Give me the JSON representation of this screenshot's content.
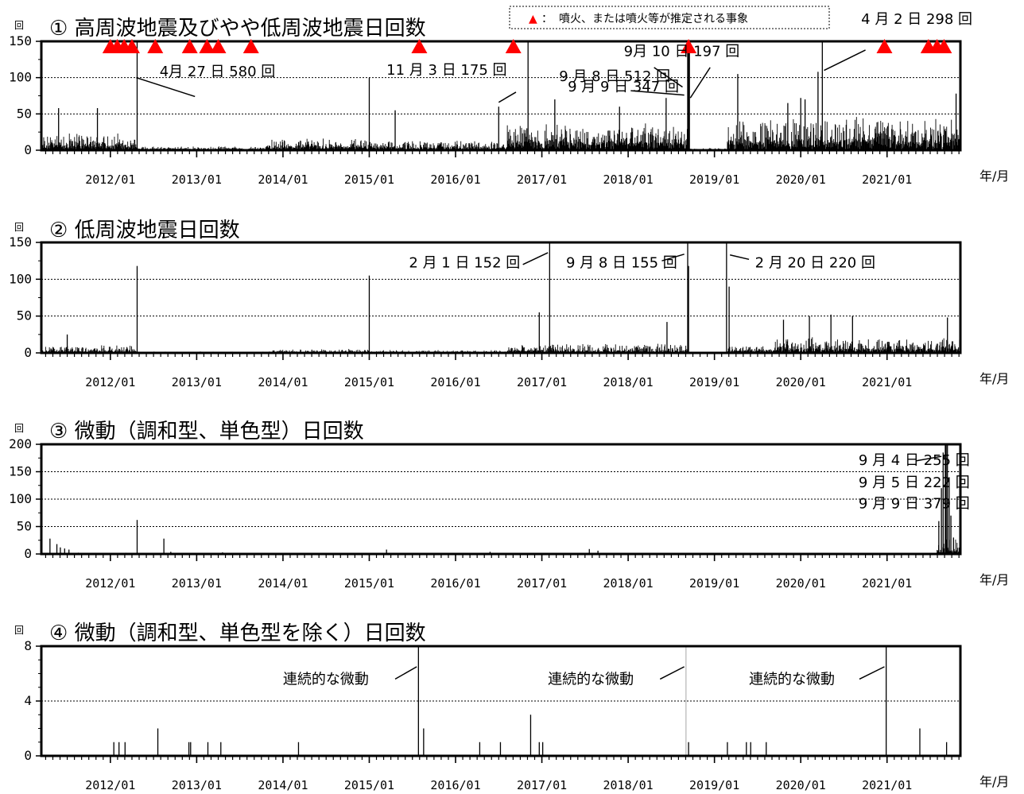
{
  "legend": {
    "symbol": "▲",
    "colon": "：",
    "text": "噴火、または噴火等が推定される事象",
    "color": "#ff0000"
  },
  "chart_data": [
    {
      "type": "bar",
      "title": "① 高周波地震及びやや低周波地震日回数",
      "ylabel": "回",
      "xunit": "年/月",
      "ylim": [
        0,
        150
      ],
      "yticks": [
        0,
        50,
        100,
        150
      ],
      "xlim": [
        2011.2,
        2021.85
      ],
      "xticks": [
        "2012/01",
        "2013/01",
        "2014/01",
        "2015/01",
        "2016/01",
        "2017/01",
        "2018/01",
        "2019/01",
        "2020/01",
        "2021/01"
      ],
      "grid": true,
      "spikes": [
        {
          "x": 2012.31,
          "y": 580
        },
        {
          "x": 2015.0,
          "y": 100
        },
        {
          "x": 2016.84,
          "y": 175
        },
        {
          "x": 2018.44,
          "y": 72
        },
        {
          "x": 2018.69,
          "y": 512
        },
        {
          "x": 2018.7,
          "y": 347
        },
        {
          "x": 2018.71,
          "y": 197
        },
        {
          "x": 2019.27,
          "y": 105
        },
        {
          "x": 2020.0,
          "y": 72
        },
        {
          "x": 2020.2,
          "y": 108
        },
        {
          "x": 2020.25,
          "y": 298
        },
        {
          "x": 2011.4,
          "y": 58
        },
        {
          "x": 2011.85,
          "y": 58
        },
        {
          "x": 2015.3,
          "y": 55
        },
        {
          "x": 2016.5,
          "y": 60
        },
        {
          "x": 2017.15,
          "y": 70
        },
        {
          "x": 2017.9,
          "y": 60
        },
        {
          "x": 2019.85,
          "y": 65
        },
        {
          "x": 2020.05,
          "y": 70
        },
        {
          "x": 2021.8,
          "y": 78
        }
      ],
      "levels": [
        {
          "from": 2011.2,
          "to": 2012.3,
          "base": 8,
          "var": 18
        },
        {
          "from": 2012.3,
          "to": 2013.8,
          "base": 2,
          "var": 4
        },
        {
          "from": 2013.8,
          "to": 2015.0,
          "base": 6,
          "var": 12
        },
        {
          "from": 2015.0,
          "to": 2016.6,
          "base": 4,
          "var": 10
        },
        {
          "from": 2016.6,
          "to": 2018.7,
          "base": 12,
          "var": 26
        },
        {
          "from": 2018.7,
          "to": 2019.15,
          "base": 1,
          "var": 2
        },
        {
          "from": 2019.15,
          "to": 2021.85,
          "base": 15,
          "var": 32
        }
      ],
      "eruptions": [
        2012.0,
        2012.08,
        2012.16,
        2012.25,
        2012.52,
        2012.92,
        2013.12,
        2013.25,
        2013.63,
        2015.58,
        2016.67,
        2018.7,
        2020.97,
        2021.48,
        2021.58,
        2021.66
      ],
      "annotations": [
        {
          "text": "4月 27 日 580 回",
          "tx": 2012.57,
          "ty": 102,
          "x1": 2012.3,
          "y1": 100,
          "x2": 2012.98,
          "y2": 74
        },
        {
          "text": "11 月 3 日 175 回",
          "tx": 2015.2,
          "ty": 104,
          "x1": 2016.5,
          "y1": 66,
          "x2": 2016.7,
          "y2": 80
        },
        {
          "text": "9 月 9 日 347 回",
          "tx": 2017.3,
          "ty": 81,
          "x1": 2018.3,
          "y1": 114,
          "x2": 2018.63,
          "y2": 87
        },
        {
          "text": "9月 10 日 197 回",
          "tx": 2017.95,
          "ty": 130,
          "x1": 2018.72,
          "y1": 72,
          "x2": 2018.95,
          "y2": 114
        },
        {
          "text": "9 月 8 日 512 回",
          "tx": 2017.2,
          "ty": 95,
          "x1": 2018.03,
          "y1": 82,
          "x2": 2018.65,
          "y2": 76
        },
        {
          "text": "4 月 2 日 298 回",
          "tx": 2020.7,
          "ty": 174,
          "x1": 2020.27,
          "y1": 110,
          "x2": 2020.75,
          "y2": 138
        }
      ]
    },
    {
      "type": "bar",
      "title": "② 低周波地震日回数",
      "ylabel": "回",
      "xunit": "年/月",
      "ylim": [
        0,
        150
      ],
      "yticks": [
        0,
        50,
        100,
        150
      ],
      "xlim": [
        2011.2,
        2021.85
      ],
      "xticks": [
        "2012/01",
        "2013/01",
        "2014/01",
        "2015/01",
        "2016/01",
        "2017/01",
        "2018/01",
        "2019/01",
        "2020/01",
        "2021/01"
      ],
      "grid": true,
      "spikes": [
        {
          "x": 2012.31,
          "y": 118
        },
        {
          "x": 2015.0,
          "y": 105
        },
        {
          "x": 2017.09,
          "y": 152
        },
        {
          "x": 2018.69,
          "y": 155
        },
        {
          "x": 2018.7,
          "y": 118
        },
        {
          "x": 2019.14,
          "y": 220
        },
        {
          "x": 2019.17,
          "y": 90
        },
        {
          "x": 2016.97,
          "y": 55
        },
        {
          "x": 2018.45,
          "y": 42
        },
        {
          "x": 2020.1,
          "y": 50
        },
        {
          "x": 2020.35,
          "y": 52
        },
        {
          "x": 2020.6,
          "y": 50
        },
        {
          "x": 2021.7,
          "y": 48
        },
        {
          "x": 2011.5,
          "y": 25
        },
        {
          "x": 2019.8,
          "y": 45
        }
      ],
      "levels": [
        {
          "from": 2011.2,
          "to": 2012.3,
          "base": 3,
          "var": 8
        },
        {
          "from": 2012.3,
          "to": 2013.8,
          "base": 0.5,
          "var": 1.5
        },
        {
          "from": 2013.8,
          "to": 2015.0,
          "base": 1.5,
          "var": 4
        },
        {
          "from": 2015.0,
          "to": 2016.6,
          "base": 1,
          "var": 3
        },
        {
          "from": 2016.6,
          "to": 2018.7,
          "base": 3,
          "var": 10
        },
        {
          "from": 2018.7,
          "to": 2019.15,
          "base": 0,
          "var": 0
        },
        {
          "from": 2019.15,
          "to": 2019.7,
          "base": 3,
          "var": 8
        },
        {
          "from": 2019.7,
          "to": 2021.85,
          "base": 6,
          "var": 16
        }
      ],
      "annotations": [
        {
          "text": "2 月 1 日 152 回",
          "tx": 2015.46,
          "ty": 116,
          "x1": 2016.78,
          "y1": 120,
          "x2": 2017.07,
          "y2": 136
        },
        {
          "text": "9 月 8 日 155 回",
          "tx": 2017.28,
          "ty": 116,
          "x1": 2018.39,
          "y1": 125,
          "x2": 2018.65,
          "y2": 134
        },
        {
          "text": "2 月 20 日 220 回",
          "tx": 2019.47,
          "ty": 116,
          "x1": 2019.18,
          "y1": 133,
          "x2": 2019.4,
          "y2": 127
        }
      ]
    },
    {
      "type": "bar",
      "title": "③ 微動（調和型、単色型）日回数",
      "ylabel": "回",
      "xunit": "年/月",
      "ylim": [
        0,
        200
      ],
      "yticks": [
        0,
        50,
        100,
        150,
        200
      ],
      "xlim": [
        2011.2,
        2021.85
      ],
      "xticks": [
        "2012/01",
        "2013/01",
        "2014/01",
        "2015/01",
        "2016/01",
        "2017/01",
        "2018/01",
        "2019/01",
        "2020/01",
        "2021/01"
      ],
      "grid": true,
      "spikes": [
        {
          "x": 2011.3,
          "y": 28
        },
        {
          "x": 2011.38,
          "y": 18
        },
        {
          "x": 2011.42,
          "y": 12
        },
        {
          "x": 2011.47,
          "y": 10
        },
        {
          "x": 2011.52,
          "y": 8
        },
        {
          "x": 2012.31,
          "y": 62
        },
        {
          "x": 2012.62,
          "y": 28
        },
        {
          "x": 2012.7,
          "y": 4
        },
        {
          "x": 2013.3,
          "y": 3
        },
        {
          "x": 2015.2,
          "y": 8
        },
        {
          "x": 2016.4,
          "y": 4
        },
        {
          "x": 2017.55,
          "y": 9
        },
        {
          "x": 2017.65,
          "y": 6
        },
        {
          "x": 2021.6,
          "y": 60
        },
        {
          "x": 2021.63,
          "y": 120
        },
        {
          "x": 2021.65,
          "y": 185
        },
        {
          "x": 2021.675,
          "y": 255
        },
        {
          "x": 2021.685,
          "y": 222
        },
        {
          "x": 2021.7,
          "y": 379
        },
        {
          "x": 2021.72,
          "y": 140
        },
        {
          "x": 2021.74,
          "y": 70
        },
        {
          "x": 2021.77,
          "y": 30
        }
      ],
      "levels": [
        {
          "from": 2011.2,
          "to": 2012.3,
          "base": 0.5,
          "var": 2
        },
        {
          "from": 2012.3,
          "to": 2021.58,
          "base": 0,
          "var": 1
        },
        {
          "from": 2021.58,
          "to": 2021.85,
          "base": 5,
          "var": 25
        }
      ],
      "annotations": [
        {
          "text": "9 月 4 日 255 回",
          "tx": 2020.67,
          "ty": 162,
          "x1": 2021.34,
          "y1": 170,
          "x2": 2021.63,
          "y2": 178
        },
        {
          "text": "9 月 5 日 222 回",
          "tx": 2020.67,
          "ty": 122,
          "x1": null,
          "y1": null,
          "x2": null,
          "y2": null
        },
        {
          "text": "9 月 9 日 379 回",
          "tx": 2020.67,
          "ty": 83,
          "x1": null,
          "y1": null,
          "x2": null,
          "y2": null
        }
      ]
    },
    {
      "type": "bar",
      "title": "④ 微動（調和型、単色型を除く）日回数",
      "ylabel": "回",
      "xunit": "年/月",
      "ylim": [
        0,
        8
      ],
      "yticks": [
        0,
        4,
        8
      ],
      "xlim": [
        2011.2,
        2021.85
      ],
      "xticks": [
        "2012/01",
        "2013/01",
        "2014/01",
        "2015/01",
        "2016/01",
        "2017/01",
        "2018/01",
        "2019/01",
        "2020/01",
        "2021/01"
      ],
      "grid": true,
      "spikes": [
        {
          "x": 2012.04,
          "y": 1
        },
        {
          "x": 2012.1,
          "y": 1
        },
        {
          "x": 2012.17,
          "y": 1
        },
        {
          "x": 2012.55,
          "y": 2
        },
        {
          "x": 2012.91,
          "y": 1
        },
        {
          "x": 2012.93,
          "y": 1
        },
        {
          "x": 2013.13,
          "y": 1
        },
        {
          "x": 2013.28,
          "y": 1
        },
        {
          "x": 2014.18,
          "y": 1
        },
        {
          "x": 2015.57,
          "y": 8
        },
        {
          "x": 2015.63,
          "y": 2
        },
        {
          "x": 2016.28,
          "y": 1
        },
        {
          "x": 2016.52,
          "y": 1
        },
        {
          "x": 2016.87,
          "y": 3
        },
        {
          "x": 2016.97,
          "y": 1
        },
        {
          "x": 2017.01,
          "y": 1
        },
        {
          "x": 2018.67,
          "y": 8,
          "c": "#bbbbbb"
        },
        {
          "x": 2018.7,
          "y": 1
        },
        {
          "x": 2019.15,
          "y": 1
        },
        {
          "x": 2019.37,
          "y": 1
        },
        {
          "x": 2019.42,
          "y": 1
        },
        {
          "x": 2019.6,
          "y": 1
        },
        {
          "x": 2020.99,
          "y": 8
        },
        {
          "x": 2021.38,
          "y": 2
        },
        {
          "x": 2021.69,
          "y": 1
        }
      ],
      "levels": [],
      "annotations": [
        {
          "text": "連続的な微動",
          "tx": 2014.0,
          "ty": 5.24,
          "x1": 2015.3,
          "y1": 5.6,
          "x2": 2015.55,
          "y2": 6.5
        },
        {
          "text": "連続的な微動",
          "tx": 2017.07,
          "ty": 5.24,
          "x1": 2018.37,
          "y1": 5.6,
          "x2": 2018.65,
          "y2": 6.5
        },
        {
          "text": "連続的な微動",
          "tx": 2019.4,
          "ty": 5.24,
          "x1": 2020.68,
          "y1": 5.6,
          "x2": 2020.97,
          "y2": 6.5
        }
      ]
    }
  ]
}
